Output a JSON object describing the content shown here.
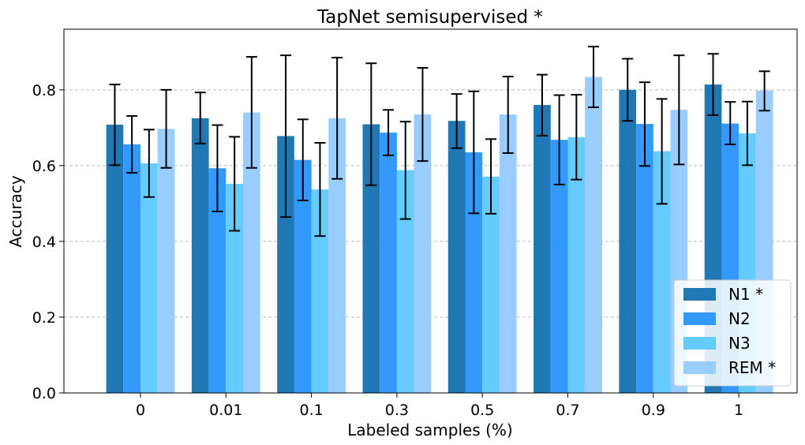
{
  "chart_data": {
    "type": "bar",
    "title": "TapNet semisupervised *",
    "xlabel": "Labeled samples (%)",
    "ylabel": "Accuracy",
    "categories": [
      "0",
      "0.01",
      "0.1",
      "0.3",
      "0.5",
      "0.7",
      "0.9",
      "1"
    ],
    "ylim": [
      0,
      0.96
    ],
    "yticks": [
      "0.0",
      "0.2",
      "0.4",
      "0.6",
      "0.8"
    ],
    "grid": "y-dashed",
    "legend_position": "bottom-right",
    "series": [
      {
        "name": "N1 *",
        "color": "#1f77b4",
        "values": [
          0.708,
          0.725,
          0.678,
          0.709,
          0.718,
          0.76,
          0.8,
          0.814
        ],
        "err_low": [
          0.601,
          0.658,
          0.464,
          0.548,
          0.646,
          0.679,
          0.718,
          0.733
        ],
        "err_high": [
          0.814,
          0.793,
          0.891,
          0.87,
          0.789,
          0.84,
          0.882,
          0.895
        ]
      },
      {
        "name": "N2",
        "color": "#3399ff",
        "values": [
          0.656,
          0.593,
          0.615,
          0.687,
          0.635,
          0.668,
          0.71,
          0.711
        ],
        "err_low": [
          0.581,
          0.479,
          0.508,
          0.627,
          0.474,
          0.55,
          0.599,
          0.656
        ],
        "err_high": [
          0.731,
          0.707,
          0.722,
          0.747,
          0.796,
          0.786,
          0.82,
          0.768
        ]
      },
      {
        "name": "N3",
        "color": "#66ccff",
        "values": [
          0.606,
          0.552,
          0.537,
          0.588,
          0.571,
          0.675,
          0.638,
          0.685
        ],
        "err_low": [
          0.517,
          0.428,
          0.414,
          0.459,
          0.473,
          0.563,
          0.499,
          0.601
        ],
        "err_high": [
          0.695,
          0.676,
          0.66,
          0.716,
          0.67,
          0.787,
          0.776,
          0.769
        ]
      },
      {
        "name": "REM *",
        "color": "#99ccff",
        "values": [
          0.697,
          0.74,
          0.725,
          0.735,
          0.735,
          0.834,
          0.747,
          0.798
        ],
        "err_low": [
          0.594,
          0.594,
          0.565,
          0.612,
          0.633,
          0.754,
          0.603,
          0.745
        ],
        "err_high": [
          0.8,
          0.887,
          0.885,
          0.858,
          0.835,
          0.914,
          0.891,
          0.849
        ]
      }
    ]
  }
}
